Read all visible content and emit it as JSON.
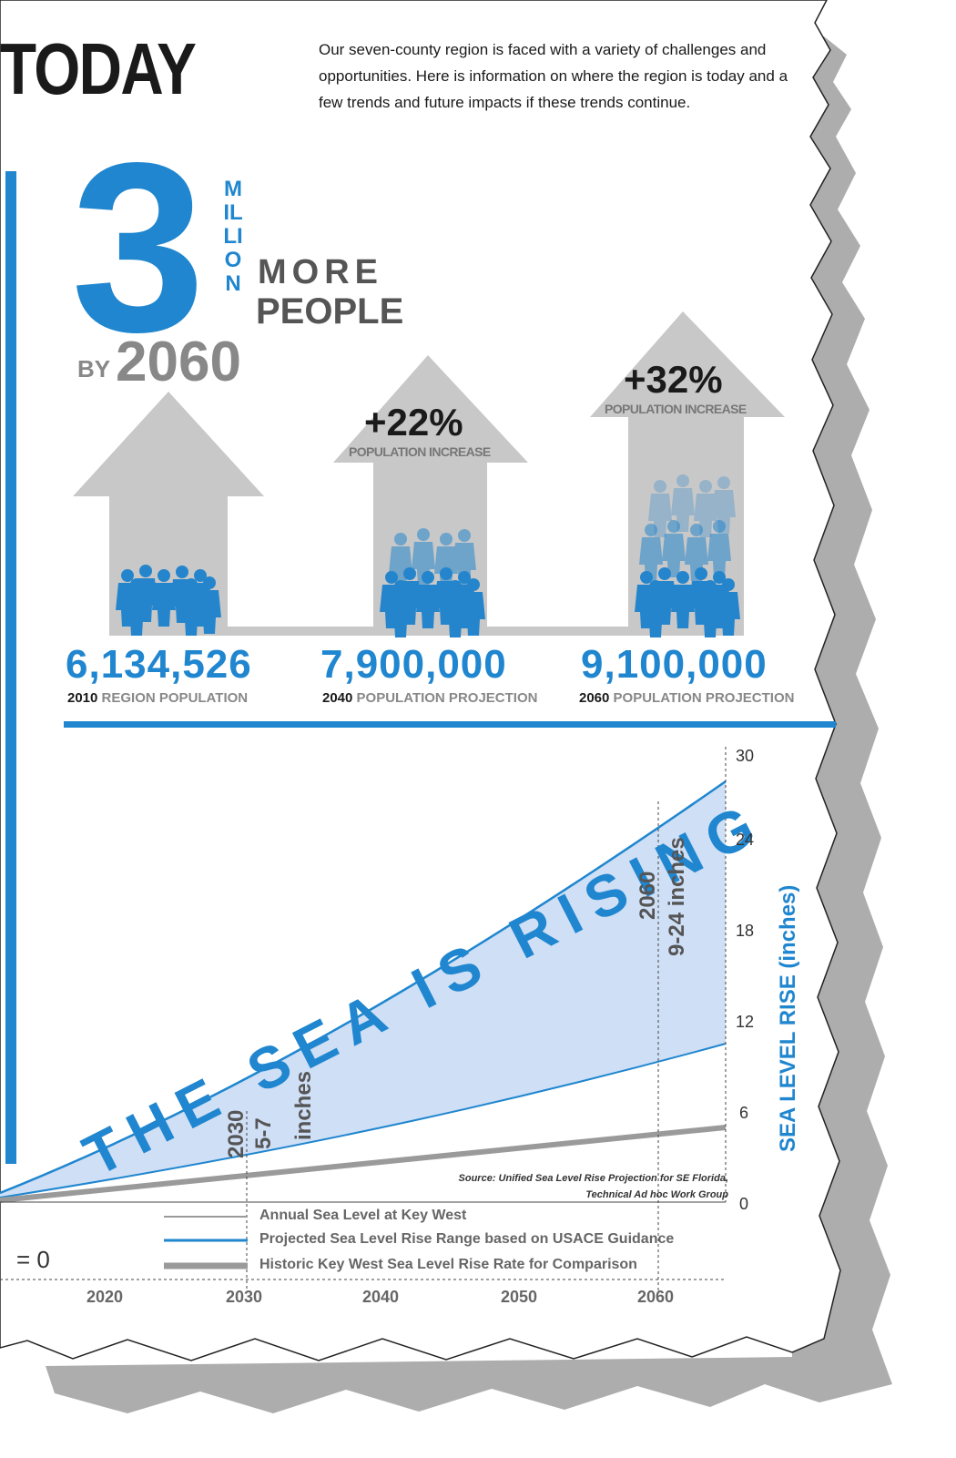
{
  "title": "TODAY",
  "intro": "Our seven-county region is faced with a variety of challenges and opportunities. Here is information on where the region is today and a few trends and future impacts if these trends continue.",
  "headline": {
    "number": "3",
    "unit": "MILLION",
    "line1": "MORE",
    "line2": "PEOPLE",
    "by": "BY",
    "year": "2060"
  },
  "population": [
    {
      "value": "6,134,526",
      "year": "2010",
      "label": "REGION POPULATION"
    },
    {
      "value": "7,900,000",
      "year": "2040",
      "label": "POPULATION PROJECTION",
      "increase": "+22%",
      "increase_label": "POPULATION INCREASE"
    },
    {
      "value": "9,100,000",
      "year": "2060",
      "label": "POPULATION PROJECTION",
      "increase": "+32%",
      "increase_label": "POPULATION INCREASE"
    }
  ],
  "sea": {
    "headline": "THE SEA IS RISING",
    "axis_label": "SEA LEVEL RISE (inches)",
    "yticks": [
      "30",
      "24",
      "18",
      "12",
      "6",
      "0"
    ],
    "xticks": [
      "2020",
      "2030",
      "2040",
      "2050",
      "2060"
    ],
    "baseline_label": "= 0",
    "annotation_2030_year": "2030",
    "annotation_2030_range": "5-7",
    "annotation_2030_unit": "inches",
    "annotation_2060_year": "2060",
    "annotation_2060_range": "9-24 inches",
    "source_line1": "Source: Unified Sea Level Rise Projection for SE Florida,",
    "source_line2": "Technical Ad hoc Work Group",
    "legend": [
      "Annual Sea Level at Key West",
      "Projected Sea Level Rise Range based on USACE Guidance",
      "Historic Key West Sea Level Rise Rate for Comparison"
    ],
    "colors": {
      "accent": "#1f86cf",
      "fill": "#cfdff5",
      "historic": "#9a9a9a",
      "arrow": "#c8c8c8"
    }
  }
}
